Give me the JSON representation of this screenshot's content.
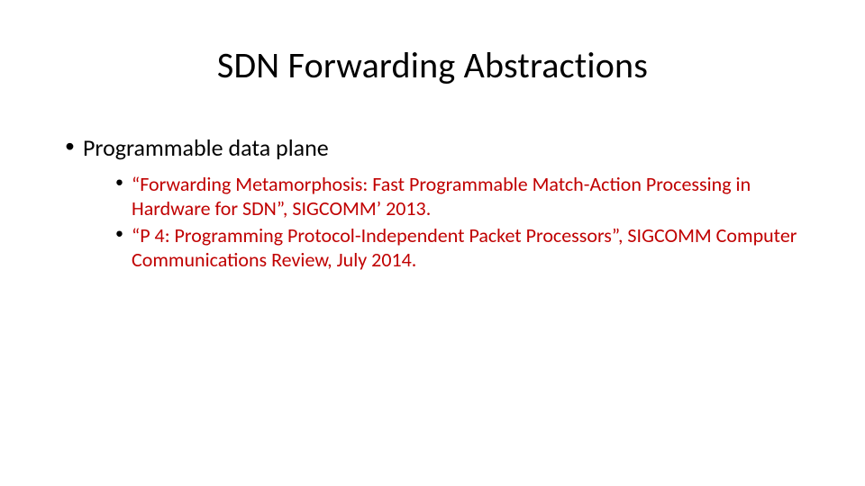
{
  "slide": {
    "title": "SDN Forwarding Abstractions",
    "title_color": "#000000",
    "title_fontsize": 40,
    "background_color": "#ffffff",
    "bullets": {
      "level1": {
        "text": "Programmable data plane",
        "color": "#000000",
        "fontsize": 26
      },
      "level2": [
        {
          "text": " “Forwarding Metamorphosis: Fast Programmable Match-Action Processing in Hardware for SDN”, SIGCOMM’ 2013.",
          "color": "#c00000",
          "fontsize": 22
        },
        {
          "text": "“P 4: Programming Protocol-Independent Packet Processors”, SIGCOMM Computer Communications Review, July 2014.",
          "color": "#c00000",
          "fontsize": 22
        }
      ]
    }
  }
}
